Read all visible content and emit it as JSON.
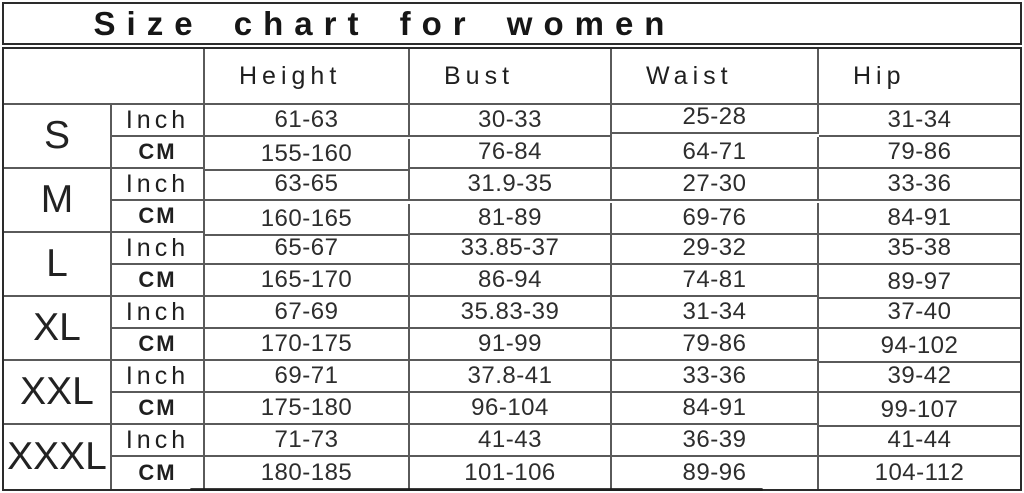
{
  "title": "Size chart for women",
  "chart_data": {
    "type": "table",
    "title": "Size chart for women",
    "column_headers": [
      "Height",
      "Bust",
      "Waist",
      "Hip"
    ],
    "unit_labels": [
      "Inch",
      "CM"
    ],
    "sizes": [
      "S",
      "M",
      "L",
      "XL",
      "XXL",
      "XXXL"
    ],
    "rows": [
      {
        "size": "S",
        "unit": "Inch",
        "height": "61-63",
        "bust": "30-33",
        "waist": "25-28",
        "hip": "31-34"
      },
      {
        "size": "S",
        "unit": "CM",
        "height": "155-160",
        "bust": "76-84",
        "waist": "64-71",
        "hip": "79-86"
      },
      {
        "size": "M",
        "unit": "Inch",
        "height": "63-65",
        "bust": "31.9-35",
        "waist": "27-30",
        "hip": "33-36"
      },
      {
        "size": "M",
        "unit": "CM",
        "height": "160-165",
        "bust": "81-89",
        "waist": "69-76",
        "hip": "84-91"
      },
      {
        "size": "L",
        "unit": "Inch",
        "height": "65-67",
        "bust": "33.85-37",
        "waist": "29-32",
        "hip": "35-38"
      },
      {
        "size": "L",
        "unit": "CM",
        "height": "165-170",
        "bust": "86-94",
        "waist": "74-81",
        "hip": "89-97"
      },
      {
        "size": "XL",
        "unit": "Inch",
        "height": "67-69",
        "bust": "35.83-39",
        "waist": "31-34",
        "hip": "37-40"
      },
      {
        "size": "XL",
        "unit": "CM",
        "height": "170-175",
        "bust": "91-99",
        "waist": "79-86",
        "hip": "94-102"
      },
      {
        "size": "XXL",
        "unit": "Inch",
        "height": "69-71",
        "bust": "37.8-41",
        "waist": "33-36",
        "hip": "39-42"
      },
      {
        "size": "XXL",
        "unit": "CM",
        "height": "175-180",
        "bust": "96-104",
        "waist": "84-91",
        "hip": "99-107"
      },
      {
        "size": "XXXL",
        "unit": "Inch",
        "height": "71-73",
        "bust": "41-43",
        "waist": "36-39",
        "hip": "41-44"
      },
      {
        "size": "XXXL",
        "unit": "CM",
        "height": "180-185",
        "bust": "101-106",
        "waist": "89-96",
        "hip": "104-112"
      }
    ],
    "layout": {
      "grid": true,
      "legend": "none"
    }
  },
  "colors": {
    "background": "#ffffff",
    "outer_border": "#2b2b2b",
    "inner_border": "#5a5a5a",
    "text": "#1d1d1d"
  }
}
